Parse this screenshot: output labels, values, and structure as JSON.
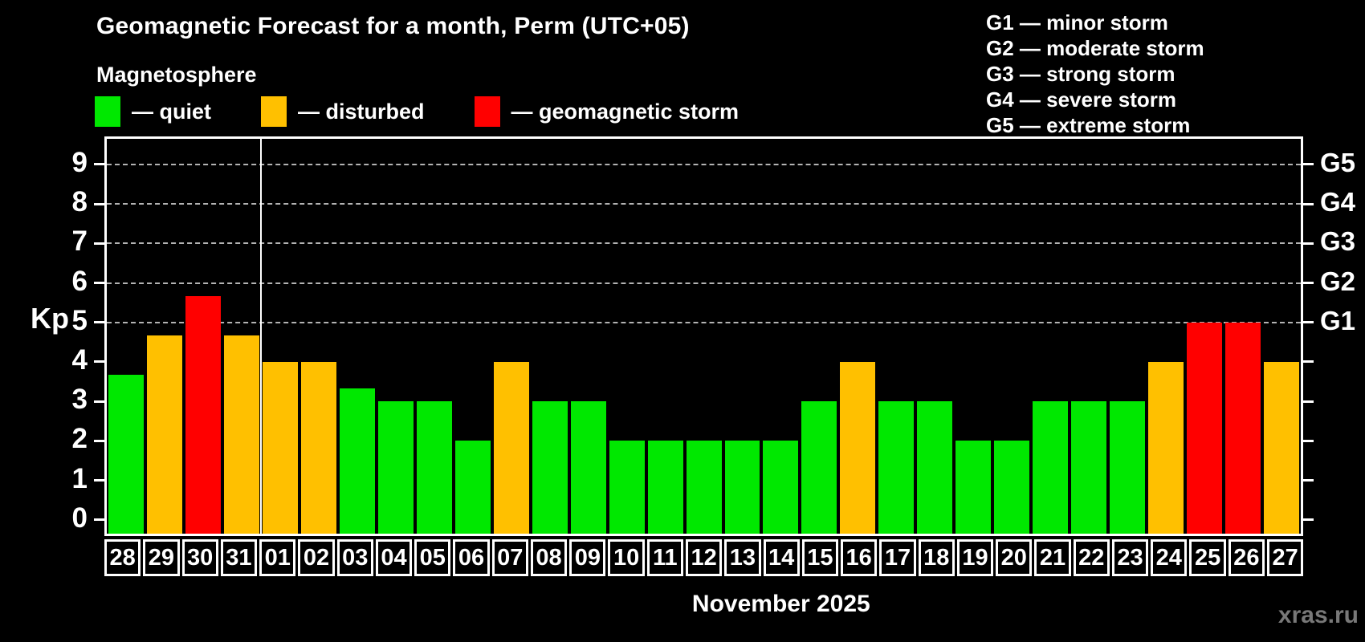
{
  "header": {
    "title": "Geomagnetic Forecast for a month, Perm (UTC+05)",
    "subtitle": "Magnetosphere"
  },
  "legend": {
    "items": [
      {
        "status": "quiet",
        "label": "— quiet"
      },
      {
        "status": "disturbed",
        "label": "— disturbed"
      },
      {
        "status": "storm",
        "label": "— geomagnetic storm"
      }
    ]
  },
  "storm_scale": [
    {
      "code": "G1",
      "kp": 5,
      "text": "G1 — minor storm"
    },
    {
      "code": "G2",
      "kp": 6,
      "text": "G2 — moderate storm"
    },
    {
      "code": "G3",
      "kp": 7,
      "text": "G3 — strong storm"
    },
    {
      "code": "G4",
      "kp": 8,
      "text": "G4 — severe storm"
    },
    {
      "code": "G5",
      "kp": 9,
      "text": "G5 — extreme storm"
    }
  ],
  "axis": {
    "kp_label": "Kp",
    "left_ticks": [
      0,
      1,
      2,
      3,
      4,
      5,
      6,
      7,
      8,
      9
    ]
  },
  "chart_data": {
    "type": "bar",
    "title": "Geomagnetic Forecast for a month, Perm (UTC+05)",
    "xlabel": "November 2025",
    "ylabel": "Kp",
    "ylim": [
      -0.35,
      9.65
    ],
    "gridlines_kp": [
      5,
      6,
      7,
      8,
      9
    ],
    "grid": "dashed-horizontal-at-storm-levels",
    "legend_position": "top-left",
    "month_separator_after_index": 3,
    "categories": [
      "28",
      "29",
      "30",
      "31",
      "01",
      "02",
      "03",
      "04",
      "05",
      "06",
      "07",
      "08",
      "09",
      "10",
      "11",
      "12",
      "13",
      "14",
      "15",
      "16",
      "17",
      "18",
      "19",
      "20",
      "21",
      "22",
      "23",
      "24",
      "25",
      "26",
      "27"
    ],
    "values": [
      3.67,
      4.67,
      5.67,
      4.67,
      4,
      4,
      3.33,
      3,
      3,
      2,
      4,
      3,
      3,
      2,
      2,
      2,
      2,
      2,
      3,
      4,
      3,
      3,
      2,
      2,
      3,
      3,
      3,
      4,
      5,
      5,
      4
    ],
    "statuses": [
      "quiet",
      "disturbed",
      "storm",
      "disturbed",
      "disturbed",
      "disturbed",
      "quiet",
      "quiet",
      "quiet",
      "quiet",
      "disturbed",
      "quiet",
      "quiet",
      "quiet",
      "quiet",
      "quiet",
      "quiet",
      "quiet",
      "quiet",
      "disturbed",
      "quiet",
      "quiet",
      "quiet",
      "quiet",
      "quiet",
      "quiet",
      "quiet",
      "disturbed",
      "storm",
      "storm",
      "disturbed"
    ],
    "colors": {
      "quiet": "#00e800",
      "disturbed": "#ffc000",
      "storm": "#ff0000"
    }
  },
  "xaxis": {
    "title": "November 2025"
  },
  "footer": {
    "watermark": "xras.ru"
  }
}
